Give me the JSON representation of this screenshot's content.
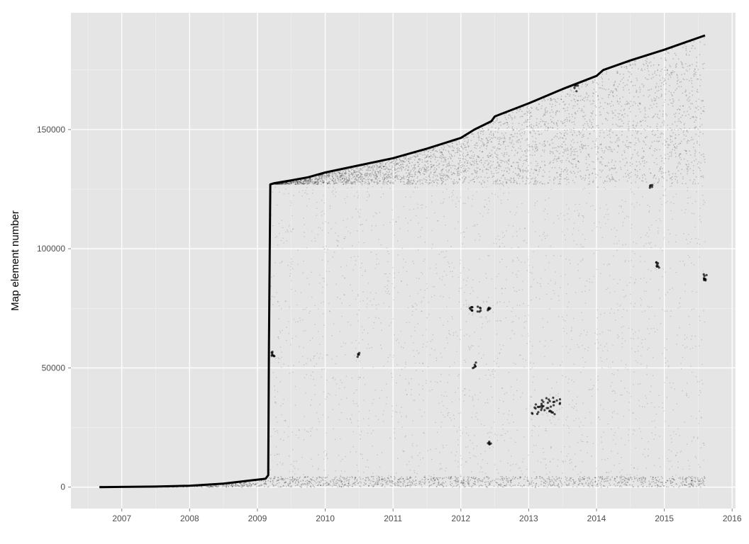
{
  "chart_data": {
    "type": "scatter",
    "title": "",
    "xlabel": "",
    "ylabel": "Map element number",
    "xlim": [
      2006.25,
      2016.05
    ],
    "ylim": [
      -9000,
      199000
    ],
    "x_ticks": [
      2007,
      2008,
      2009,
      2010,
      2011,
      2012,
      2013,
      2014,
      2015,
      2016
    ],
    "x_tick_labels": [
      "2007",
      "2008",
      "2009",
      "2010",
      "2011",
      "2012",
      "2013",
      "2014",
      "2015",
      "2016"
    ],
    "y_ticks": [
      0,
      50000,
      100000,
      150000
    ],
    "y_tick_labels": [
      "0",
      "50000",
      "100000",
      "150000"
    ],
    "grid": true,
    "panel_color": "#e5e5e5",
    "grid_color": "#ffffff",
    "point_color": "#000000",
    "series": [
      {
        "kind": "frontier",
        "x": [
          2006.67,
          2007.0,
          2007.5,
          2008.0,
          2008.5,
          2008.9,
          2009.12,
          2009.16,
          2009.17,
          2009.19,
          2009.25,
          2009.5,
          2009.75,
          2010.0,
          2010.5,
          2011.0,
          2011.5,
          2012.0,
          2012.2,
          2012.45,
          2012.5,
          2013.0,
          2013.5,
          2014.0,
          2014.1,
          2014.5,
          2015.0,
          2015.3,
          2015.6
        ],
        "y": [
          0,
          80,
          250,
          600,
          1500,
          2800,
          3500,
          5000,
          60000,
          127000,
          127500,
          128700,
          130000,
          132000,
          135000,
          138000,
          142000,
          146500,
          150000,
          153500,
          155500,
          161000,
          167000,
          172500,
          175000,
          179000,
          183500,
          186500,
          189500
        ]
      }
    ],
    "dense_bands": [
      {
        "x": [
          2009.19,
          2015.6
        ],
        "y_from": 127000,
        "y_to_frontier": true,
        "intensity": "high"
      },
      {
        "x": [
          2006.67,
          2015.6
        ],
        "y": [
          0,
          4500
        ],
        "intensity": "high"
      },
      {
        "x": [
          2009.19,
          2015.6
        ],
        "y": [
          4500,
          127000
        ],
        "intensity": "low"
      }
    ]
  }
}
